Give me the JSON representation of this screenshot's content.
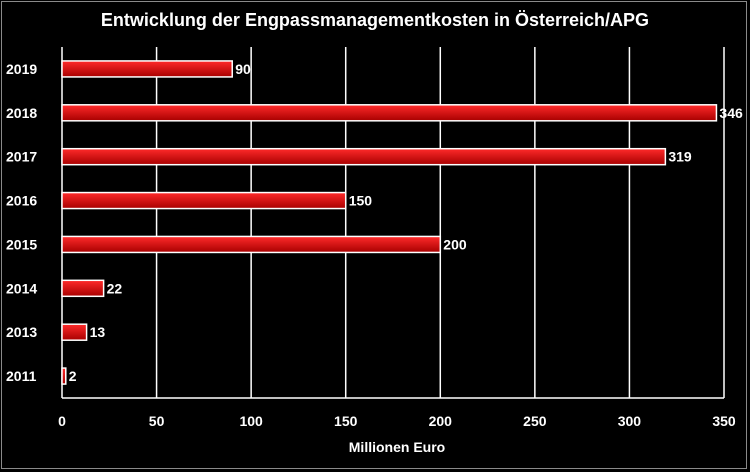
{
  "chart_data": {
    "type": "bar",
    "orientation": "horizontal",
    "title": "Entwicklung der Engpassmanagementkosten in Österreich/APG",
    "xlabel": "Millionen Euro",
    "ylabel": "",
    "categories": [
      "2019",
      "2018",
      "2017",
      "2016",
      "2015",
      "2014",
      "2013",
      "2011"
    ],
    "values": [
      90,
      346,
      319,
      150,
      200,
      22,
      13,
      2
    ],
    "data_labels": [
      "90",
      "346",
      "319",
      "150",
      "200",
      "22",
      "13",
      "2"
    ],
    "xlim": [
      0,
      350
    ],
    "x_ticks": [
      0,
      50,
      100,
      150,
      200,
      250,
      300,
      350
    ],
    "x_tick_labels": [
      "0",
      "50",
      "100",
      "150",
      "200",
      "250",
      "300",
      "350"
    ],
    "grid": "vertical",
    "legend": "none",
    "colors": {
      "background": "#000000",
      "bar_top": "#ff2a2a",
      "bar_bottom": "#a80000",
      "bar_border": "#ffffff",
      "grid": "#ffffff",
      "text": "#ffffff"
    }
  }
}
